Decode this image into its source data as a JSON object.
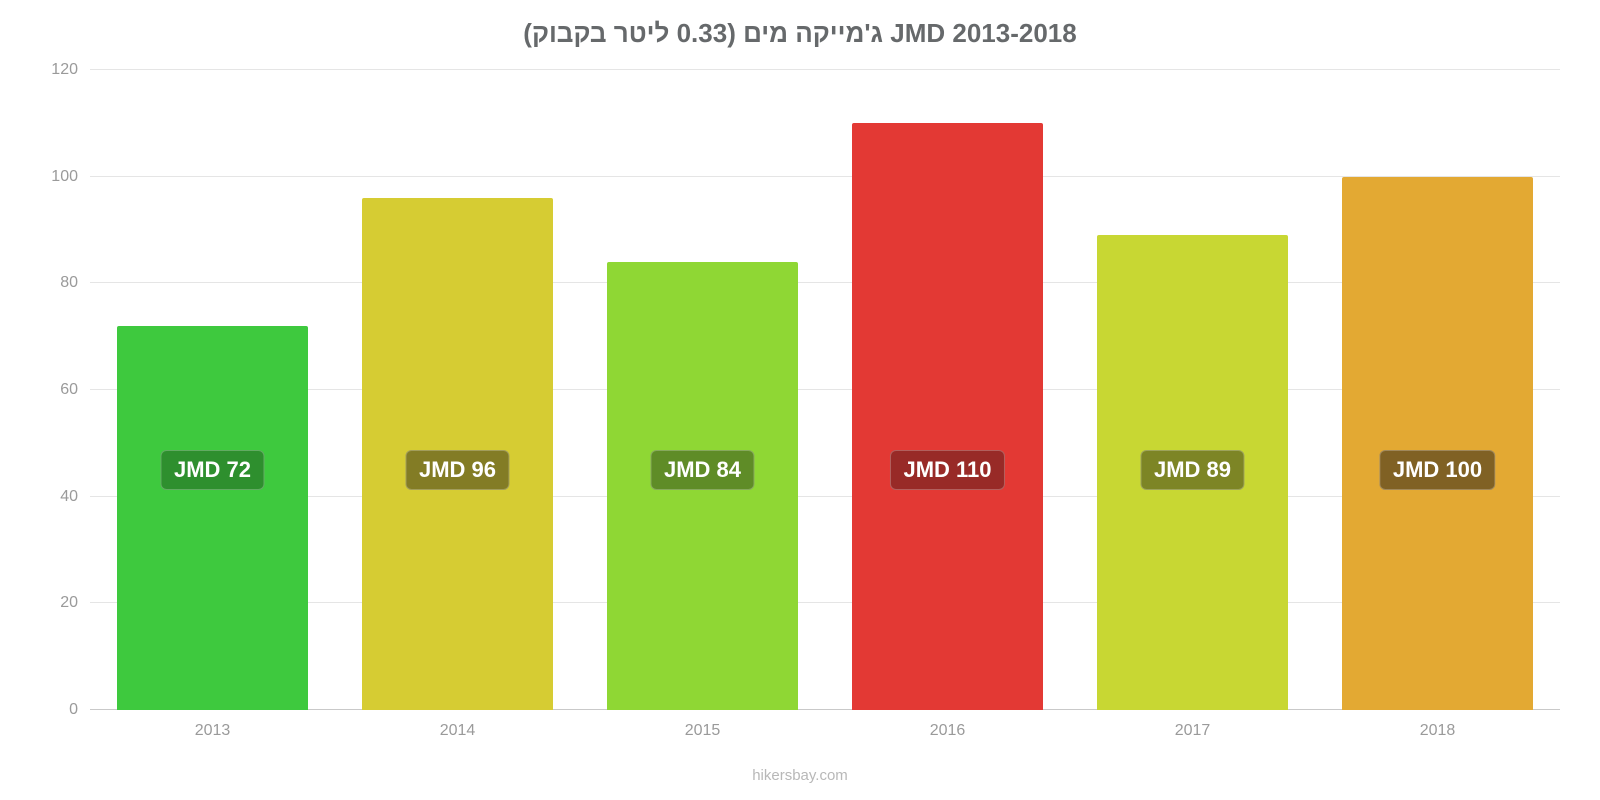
{
  "chart": {
    "type": "bar",
    "title": "ג'מייקה מים (0.33 ליטר בקבוק) JMD 2013-2018",
    "title_fontsize": 26,
    "title_color": "#66696b",
    "background_color": "#ffffff",
    "grid_color": "#e5e5e5",
    "baseline_color": "#c9c9c9",
    "tick_label_color": "#9a9a9a",
    "tick_label_fontsize": 16,
    "bar_label_fontsize": 22,
    "ylim": [
      0,
      120
    ],
    "ytick_step": 20,
    "yticks": [
      0,
      20,
      40,
      60,
      80,
      100,
      120
    ],
    "bar_width_ratio": 0.78,
    "bar_label_y_value": 45,
    "categories": [
      "2013",
      "2014",
      "2015",
      "2016",
      "2017",
      "2018"
    ],
    "values": [
      72,
      96,
      84,
      110,
      89,
      100
    ],
    "bar_labels": [
      "JMD 72",
      "JMD 96",
      "JMD 84",
      "JMD 110",
      "JMD 89",
      "JMD 100"
    ],
    "bar_colors": [
      "#3ec93e",
      "#d6cc33",
      "#8fd734",
      "#e33934",
      "#c8d733",
      "#e3a933"
    ],
    "bar_label_bg_colors": [
      "#2e8f2e",
      "#837c25",
      "#5f8c27",
      "#982a27",
      "#7d8525",
      "#806124"
    ],
    "attribution": "hikersbay.com",
    "attribution_color": "#b8b8b8"
  }
}
